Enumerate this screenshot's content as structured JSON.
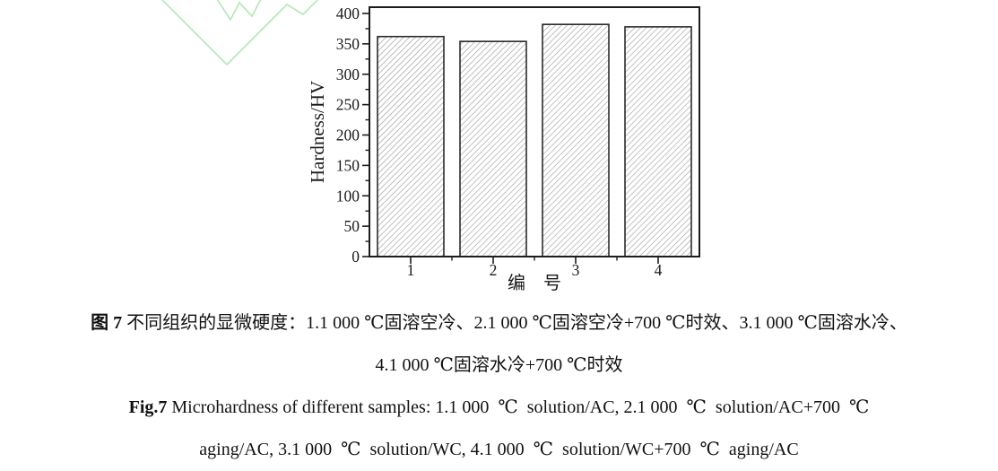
{
  "page": {
    "background": "#ffffff"
  },
  "decor": {
    "watermark_color": "#b7e9b7"
  },
  "chart_data": {
    "type": "bar",
    "title": "",
    "categories": [
      "1",
      "2",
      "3",
      "4"
    ],
    "values": [
      362,
      354,
      382,
      378
    ],
    "xlabel": "编　号",
    "ylabel": "Hardness/HV",
    "ylim": [
      0,
      400
    ],
    "y_ticks": [
      0,
      50,
      100,
      150,
      200,
      250,
      300,
      350,
      400
    ],
    "y_minor_step": 25,
    "grid": false,
    "legend": "none",
    "bar_style": {
      "fill": "diagonal-hatch",
      "hatch_color": "#8f8f8f",
      "edge_color": "#2b2b2b",
      "frame_color": "#1c1c1c"
    }
  },
  "caption": {
    "cn_prefix": "图 7",
    "cn_line1": " 不同组织的显微硬度：1.1 000 ℃固溶空冷、2.1 000 ℃固溶空冷+700 ℃时效、3.1 000 ℃固溶水冷、",
    "cn_line2": "4.1 000 ℃固溶水冷+700 ℃时效",
    "en_prefix": "Fig.7",
    "en_line1": " Microhardness of different samples: 1.1 000  ℃  solution/AC, 2.1 000  ℃  solution/AC+700  ℃",
    "en_line2": "aging/AC, 3.1 000  ℃  solution/WC, 4.1 000  ℃  solution/WC+700  ℃  aging/AC"
  }
}
